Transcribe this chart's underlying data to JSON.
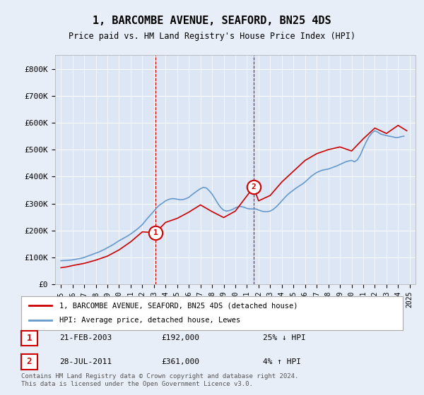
{
  "title": "1, BARCOMBE AVENUE, SEAFORD, BN25 4DS",
  "subtitle": "Price paid vs. HM Land Registry's House Price Index (HPI)",
  "background_color": "#e8eef8",
  "plot_bg_color": "#dce6f5",
  "transaction1": {
    "date": "2003-02-21",
    "price": 192000,
    "label": "1",
    "hpi_diff": "25% ↓ HPI",
    "display": "21-FEB-2003",
    "x_val": 2003.14
  },
  "transaction2": {
    "date": "2011-07-28",
    "price": 361000,
    "label": "2",
    "hpi_diff": "4% ↑ HPI",
    "display": "28-JUL-2011",
    "x_val": 2011.57
  },
  "ylim": [
    0,
    850000
  ],
  "xlim_start": 1994.5,
  "xlim_end": 2025.5,
  "yticks": [
    0,
    100000,
    200000,
    300000,
    400000,
    500000,
    600000,
    700000,
    800000
  ],
  "ytick_labels": [
    "£0",
    "£100K",
    "£200K",
    "£300K",
    "£400K",
    "£500K",
    "£600K",
    "£700K",
    "£800K"
  ],
  "xticks": [
    1995,
    1996,
    1997,
    1998,
    1999,
    2000,
    2001,
    2002,
    2003,
    2004,
    2005,
    2006,
    2007,
    2008,
    2009,
    2010,
    2011,
    2012,
    2013,
    2014,
    2015,
    2016,
    2017,
    2018,
    2019,
    2020,
    2021,
    2022,
    2023,
    2024,
    2025
  ],
  "hpi_line_color": "#6699cc",
  "price_line_color": "#cc0000",
  "dashed_line_color": "#cc0000",
  "legend_label_red": "1, BARCOMBE AVENUE, SEAFORD, BN25 4DS (detached house)",
  "legend_label_blue": "HPI: Average price, detached house, Lewes",
  "footer": "Contains HM Land Registry data © Crown copyright and database right 2024.\nThis data is licensed under the Open Government Licence v3.0.",
  "hpi_data_x": [
    1995.0,
    1995.25,
    1995.5,
    1995.75,
    1996.0,
    1996.25,
    1996.5,
    1996.75,
    1997.0,
    1997.25,
    1997.5,
    1997.75,
    1998.0,
    1998.25,
    1998.5,
    1998.75,
    1999.0,
    1999.25,
    1999.5,
    1999.75,
    2000.0,
    2000.25,
    2000.5,
    2000.75,
    2001.0,
    2001.25,
    2001.5,
    2001.75,
    2002.0,
    2002.25,
    2002.5,
    2002.75,
    2003.0,
    2003.25,
    2003.5,
    2003.75,
    2004.0,
    2004.25,
    2004.5,
    2004.75,
    2005.0,
    2005.25,
    2005.5,
    2005.75,
    2006.0,
    2006.25,
    2006.5,
    2006.75,
    2007.0,
    2007.25,
    2007.5,
    2007.75,
    2008.0,
    2008.25,
    2008.5,
    2008.75,
    2009.0,
    2009.25,
    2009.5,
    2009.75,
    2010.0,
    2010.25,
    2010.5,
    2010.75,
    2011.0,
    2011.25,
    2011.5,
    2011.75,
    2012.0,
    2012.25,
    2012.5,
    2012.75,
    2013.0,
    2013.25,
    2013.5,
    2013.75,
    2014.0,
    2014.25,
    2014.5,
    2014.75,
    2015.0,
    2015.25,
    2015.5,
    2015.75,
    2016.0,
    2016.25,
    2016.5,
    2016.75,
    2017.0,
    2017.25,
    2017.5,
    2017.75,
    2018.0,
    2018.25,
    2018.5,
    2018.75,
    2019.0,
    2019.25,
    2019.5,
    2019.75,
    2020.0,
    2020.25,
    2020.5,
    2020.75,
    2021.0,
    2021.25,
    2021.5,
    2021.75,
    2022.0,
    2022.25,
    2022.5,
    2022.75,
    2023.0,
    2023.25,
    2023.5,
    2023.75,
    2024.0,
    2024.25,
    2024.5
  ],
  "hpi_data_y": [
    88000,
    88500,
    89000,
    90000,
    91000,
    93000,
    95000,
    97000,
    100000,
    104000,
    108000,
    112000,
    116000,
    120000,
    125000,
    130000,
    136000,
    142000,
    148000,
    155000,
    162000,
    168000,
    174000,
    180000,
    187000,
    195000,
    203000,
    212000,
    222000,
    235000,
    248000,
    260000,
    272000,
    285000,
    295000,
    302000,
    310000,
    315000,
    318000,
    318000,
    316000,
    314000,
    315000,
    318000,
    323000,
    332000,
    340000,
    348000,
    355000,
    360000,
    358000,
    348000,
    335000,
    318000,
    300000,
    285000,
    275000,
    272000,
    274000,
    278000,
    284000,
    288000,
    289000,
    286000,
    282000,
    280000,
    280000,
    280000,
    276000,
    272000,
    270000,
    270000,
    272000,
    278000,
    287000,
    298000,
    310000,
    322000,
    333000,
    342000,
    350000,
    358000,
    365000,
    372000,
    380000,
    390000,
    400000,
    408000,
    415000,
    420000,
    424000,
    426000,
    428000,
    432000,
    436000,
    440000,
    445000,
    450000,
    455000,
    458000,
    460000,
    455000,
    462000,
    480000,
    505000,
    528000,
    548000,
    562000,
    570000,
    565000,
    558000,
    555000,
    552000,
    550000,
    548000,
    545000,
    545000,
    548000,
    550000
  ],
  "price_data_x": [
    1995.0,
    1995.5,
    1996.0,
    1997.0,
    1998.0,
    1999.0,
    2000.0,
    2001.0,
    2002.0,
    2003.14,
    2004.0,
    2005.0,
    2006.0,
    2007.0,
    2008.0,
    2009.0,
    2010.0,
    2011.57,
    2012.0,
    2013.0,
    2014.0,
    2015.0,
    2016.0,
    2017.0,
    2018.0,
    2019.0,
    2020.0,
    2021.0,
    2022.0,
    2023.0,
    2024.0,
    2024.75
  ],
  "price_data_y": [
    62000,
    65000,
    70000,
    78000,
    90000,
    105000,
    128000,
    158000,
    195000,
    192000,
    230000,
    245000,
    268000,
    295000,
    270000,
    248000,
    272000,
    361000,
    310000,
    330000,
    380000,
    420000,
    460000,
    485000,
    500000,
    510000,
    495000,
    540000,
    580000,
    560000,
    590000,
    570000
  ]
}
